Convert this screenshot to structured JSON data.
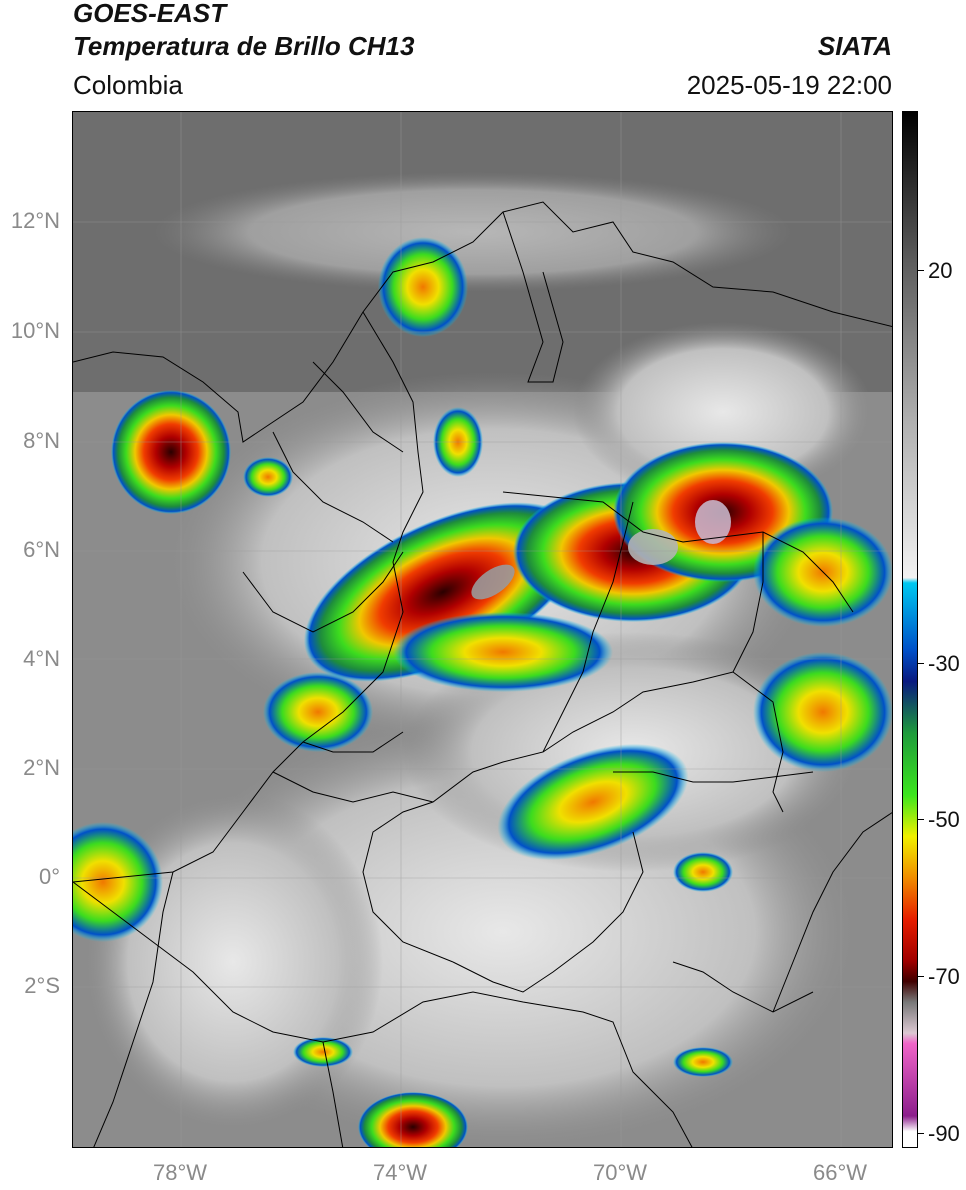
{
  "header": {
    "satellite": "GOES-EAST",
    "product": "Temperatura de Brillo CH13",
    "organization": "SIATA",
    "region": "Colombia",
    "datetime": "2025-05-19 22:00"
  },
  "map": {
    "lat_labels": [
      "12°N",
      "10°N",
      "8°N",
      "6°N",
      "4°N",
      "2°N",
      "0°",
      "2°S"
    ],
    "lon_labels": [
      "78°W",
      "74°W",
      "70°W",
      "66°W"
    ]
  },
  "colorbar": {
    "tick_labels": [
      "20",
      "-30",
      "-50",
      "-70",
      "-90"
    ],
    "colors": [
      "#000000",
      "#5a5a5a",
      "#b0b0b0",
      "#f2f2f2",
      "#00c8f0",
      "#0050c8",
      "#0a1a80",
      "#1e9b3c",
      "#3ce61e",
      "#f0f000",
      "#f08c00",
      "#e61e00",
      "#a00000",
      "#400000",
      "#787878",
      "#dcc8d2",
      "#f064c8",
      "#8c1e8c",
      "#ffffff"
    ]
  }
}
